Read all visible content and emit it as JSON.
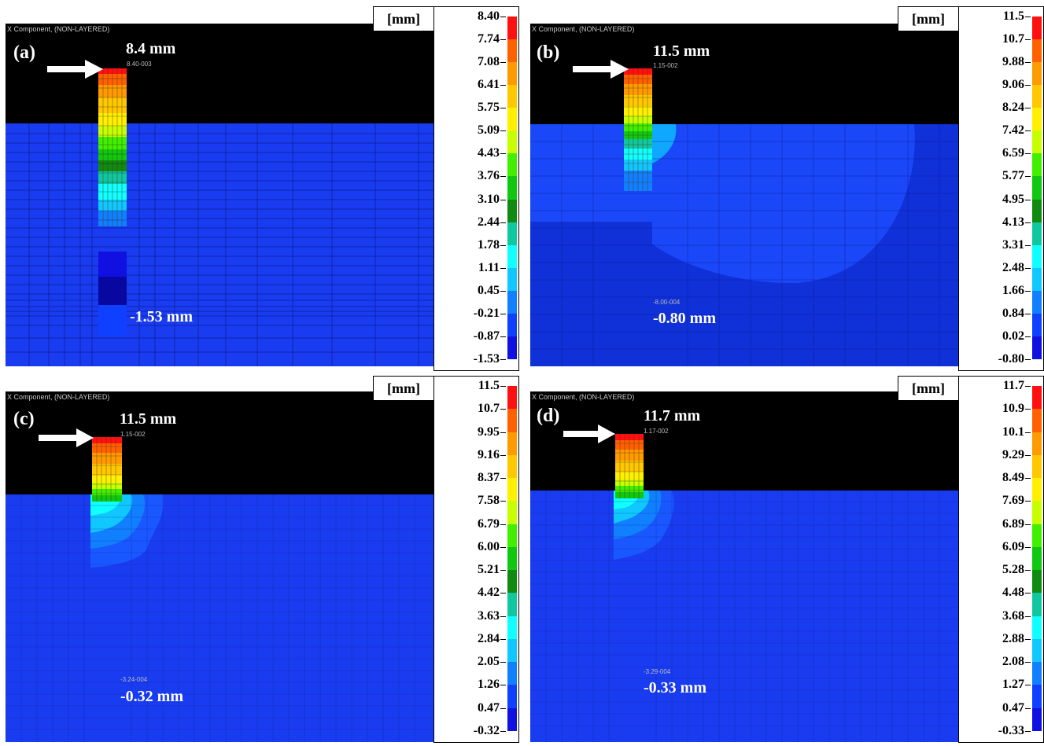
{
  "panels": [
    {
      "id": "a",
      "label": "(a)",
      "header": "X Component, (NON-LAYERED)",
      "max_label": "8.4 mm",
      "min_label": "-1.53 mm",
      "max_small": "8.40-003",
      "min_small": "",
      "unit": "[mm]",
      "scale": [
        "8.40",
        "7.74",
        "7.08",
        "6.41",
        "5.75",
        "5.09",
        "4.43",
        "3.76",
        "3.10",
        "2.44",
        "1.78",
        "1.11",
        "0.45",
        "-0.21",
        "-0.87",
        "-1.53"
      ]
    },
    {
      "id": "b",
      "label": "(b)",
      "header": "X Component, (NON-LAYERED)",
      "max_label": "11.5 mm",
      "min_label": "-0.80 mm",
      "max_small": "1.15-002",
      "min_small": "-8.00-004",
      "unit": "[mm]",
      "scale": [
        "11.5",
        "10.7",
        "9.88",
        "9.06",
        "8.24",
        "7.42",
        "6.59",
        "5.77",
        "4.95",
        "4.13",
        "3.31",
        "2.48",
        "1.66",
        "0.84",
        "0.02",
        "-0.80"
      ]
    },
    {
      "id": "c",
      "label": "(c)",
      "header": "X Component, (NON-LAYERED)",
      "max_label": "11.5 mm",
      "min_label": "-0.32 mm",
      "max_small": "1.15-002",
      "min_small": "-3.24-004",
      "unit": "[mm]",
      "scale": [
        "11.5",
        "10.7",
        "9.95",
        "9.16",
        "8.37",
        "7.58",
        "6.79",
        "6.00",
        "5.21",
        "4.42",
        "3.63",
        "2.84",
        "2.05",
        "1.26",
        "0.47",
        "-0.32"
      ]
    },
    {
      "id": "d",
      "label": "(d)",
      "header": "X Component, (NON-LAYERED)",
      "max_label": "11.7 mm",
      "min_label": "-0.33 mm",
      "max_small": "1.17-002",
      "min_small": "-3.29-004",
      "unit": "[mm]",
      "scale": [
        "11.7",
        "10.9",
        "10.1",
        "9.29",
        "8.49",
        "7.69",
        "6.89",
        "6.09",
        "5.28",
        "4.48",
        "3.68",
        "2.88",
        "2.08",
        "1.27",
        "0.47",
        "-0.33"
      ]
    }
  ],
  "colors": {
    "background": "#000000",
    "soil": "#1a3cf0",
    "soil_dark": "#0f28c8",
    "mesh": "#0c1e9a",
    "colorbar": [
      "#ff1010",
      "#ff6000",
      "#ff9a00",
      "#ffc800",
      "#fff000",
      "#c8ff00",
      "#40f000",
      "#10c810",
      "#108a10",
      "#10c8a0",
      "#10ffff",
      "#10c8ff",
      "#1080ff",
      "#1040ff",
      "#1010e0",
      "#0808a0"
    ]
  }
}
